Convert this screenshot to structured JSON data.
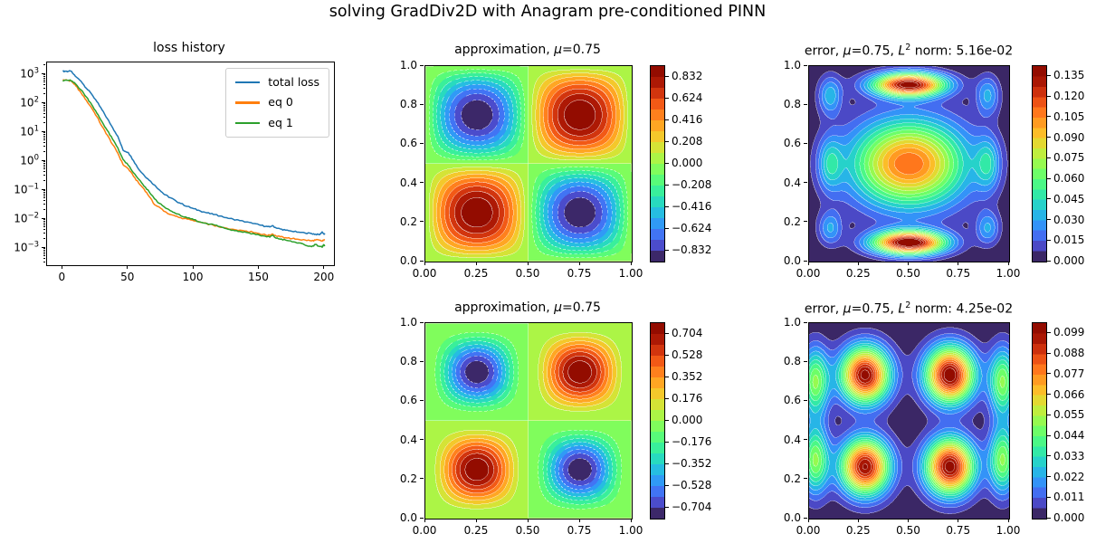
{
  "figure": {
    "suptitle": "solving GradDiv2D with Anagram pre-conditioned PINN",
    "background": "#ffffff",
    "text_color": "#000000",
    "contour_line_color": "#ffffff"
  },
  "chart_data": [
    {
      "id": "loss",
      "type": "line",
      "title": "loss history",
      "title_segments": [
        {
          "t": "loss history"
        }
      ],
      "legend_position": "upper right",
      "grid": false,
      "x_axis": {
        "ticks": [
          "0",
          "50",
          "100",
          "150",
          "200"
        ],
        "lim": [
          -12,
          207
        ]
      },
      "y_axis": {
        "scale": "log",
        "tick_exponents": [
          3,
          2,
          1,
          0,
          -1,
          -2,
          -3
        ],
        "lim_exp": [
          -3.59,
          3.41
        ]
      },
      "noise": 0.022,
      "x": [
        0,
        2,
        4,
        6,
        8,
        10,
        14,
        18,
        22,
        26,
        30,
        34,
        38,
        42,
        46,
        50,
        54,
        58,
        62,
        66,
        70,
        74,
        78,
        82,
        86,
        90,
        95,
        100,
        105,
        110,
        115,
        120,
        125,
        130,
        135,
        140,
        145,
        150,
        155,
        158,
        160,
        163,
        166,
        170,
        175,
        180,
        185,
        190,
        193,
        196,
        198,
        199,
        200
      ],
      "series": [
        {
          "name": "total loss",
          "color": "#1f77b4",
          "logy": [
            3.1,
            3.11,
            3.1,
            3.11,
            3.02,
            2.92,
            2.76,
            2.52,
            2.32,
            2.06,
            1.77,
            1.47,
            1.16,
            0.86,
            0.38,
            0.3,
            0.02,
            -0.28,
            -0.48,
            -0.66,
            -0.82,
            -1.0,
            -1.16,
            -1.26,
            -1.36,
            -1.46,
            -1.56,
            -1.64,
            -1.72,
            -1.78,
            -1.84,
            -1.89,
            -1.95,
            -2.0,
            -2.05,
            -2.1,
            -2.15,
            -2.2,
            -2.25,
            -2.27,
            -2.22,
            -2.31,
            -2.34,
            -2.38,
            -2.42,
            -2.45,
            -2.48,
            -2.5,
            -2.52,
            -2.54,
            -2.44,
            -2.5,
            -2.53
          ]
        },
        {
          "name": "eq 0",
          "color": "#ff7f0e",
          "logy": [
            2.8,
            2.8,
            2.79,
            2.78,
            2.7,
            2.6,
            2.36,
            2.1,
            1.84,
            1.54,
            1.2,
            0.9,
            0.58,
            0.28,
            -0.12,
            -0.26,
            -0.52,
            -0.76,
            -0.96,
            -1.22,
            -1.5,
            -1.6,
            -1.74,
            -1.84,
            -1.9,
            -1.95,
            -2.0,
            -2.06,
            -2.11,
            -2.16,
            -2.21,
            -2.28,
            -2.31,
            -2.35,
            -2.38,
            -2.41,
            -2.45,
            -2.5,
            -2.55,
            -2.56,
            -2.51,
            -2.59,
            -2.61,
            -2.64,
            -2.67,
            -2.7,
            -2.72,
            -2.75,
            -2.72,
            -2.73,
            -2.76,
            -2.73,
            -2.72
          ]
        },
        {
          "name": "eq 1",
          "color": "#2ca02c",
          "logy": [
            2.79,
            2.8,
            2.79,
            2.79,
            2.73,
            2.66,
            2.46,
            2.22,
            1.96,
            1.66,
            1.36,
            1.06,
            0.76,
            0.46,
            0.06,
            -0.14,
            -0.4,
            -0.62,
            -0.86,
            -1.06,
            -1.3,
            -1.46,
            -1.6,
            -1.71,
            -1.8,
            -1.88,
            -1.96,
            -2.02,
            -2.1,
            -2.15,
            -2.19,
            -2.26,
            -2.33,
            -2.38,
            -2.42,
            -2.46,
            -2.5,
            -2.55,
            -2.6,
            -2.62,
            -2.56,
            -2.66,
            -2.69,
            -2.72,
            -2.78,
            -2.82,
            -2.9,
            -2.95,
            -2.87,
            -2.94,
            -2.97,
            -2.88,
            -2.93
          ]
        }
      ]
    },
    {
      "id": "approx_top",
      "type": "heatmap",
      "colormap": "turbo",
      "title": "approximation, μ=0.75",
      "title_segments": [
        {
          "t": "approximation, "
        },
        {
          "t": "μ",
          "italic": true
        },
        {
          "t": "=0.75"
        }
      ],
      "field": {
        "kind": "sine_product",
        "amplitude": 0.936,
        "power": 1
      },
      "vmin": -0.936,
      "vmax": 0.936,
      "levels": 18,
      "x_ticks": [
        "0.00",
        "0.25",
        "0.50",
        "0.75",
        "1.00"
      ],
      "y_ticks": [
        "0.0",
        "0.2",
        "0.4",
        "0.6",
        "0.8",
        "1.0"
      ],
      "colorbar_ticks": [
        "0.832",
        "0.624",
        "0.416",
        "0.208",
        "0.000",
        "−0.208",
        "−0.416",
        "−0.624",
        "−0.832"
      ]
    },
    {
      "id": "error_top",
      "type": "heatmap",
      "colormap": "turbo",
      "title": "error, μ=0.75, L² norm: 5.16e-02",
      "title_segments": [
        {
          "t": "error, "
        },
        {
          "t": "μ",
          "italic": true
        },
        {
          "t": "=0.75, "
        },
        {
          "t": "L",
          "italic": true
        },
        {
          "t": "2",
          "sup": true
        },
        {
          "t": " norm: 5.16e-02"
        }
      ],
      "l2_norm": "5.16e-02",
      "field": {
        "kind": "bumps",
        "bumps": [
          [
            0.5,
            0.905,
            0.14,
            0.125,
            0.042
          ],
          [
            0.5,
            0.095,
            0.147,
            0.125,
            0.042
          ],
          [
            0.5,
            0.5,
            0.112,
            0.2,
            0.155
          ],
          [
            0.105,
            0.85,
            0.034,
            0.042,
            0.07
          ],
          [
            0.895,
            0.85,
            0.031,
            0.042,
            0.07
          ],
          [
            0.105,
            0.5,
            0.034,
            0.042,
            0.095
          ],
          [
            0.895,
            0.5,
            0.034,
            0.042,
            0.095
          ],
          [
            0.105,
            0.17,
            0.03,
            0.042,
            0.06
          ],
          [
            0.895,
            0.17,
            0.03,
            0.042,
            0.06
          ]
        ]
      },
      "vmin": 0,
      "vmax": 0.1425,
      "levels": 19,
      "x_ticks": [
        "0.00",
        "0.25",
        "0.50",
        "0.75",
        "1.00"
      ],
      "y_ticks": [
        "0.0",
        "0.2",
        "0.4",
        "0.6",
        "0.8",
        "1.0"
      ],
      "colorbar_ticks": [
        "0.135",
        "0.120",
        "0.105",
        "0.090",
        "0.075",
        "0.060",
        "0.045",
        "0.030",
        "0.015",
        "0.000"
      ]
    },
    {
      "id": "approx_bottom",
      "type": "heatmap",
      "colormap": "turbo",
      "title": "approximation, μ=0.75",
      "title_segments": [
        {
          "t": "approximation, "
        },
        {
          "t": "μ",
          "italic": true
        },
        {
          "t": "=0.75"
        }
      ],
      "field": {
        "kind": "sine_product",
        "amplitude": 0.792,
        "power": 1.8
      },
      "vmin": -0.792,
      "vmax": 0.792,
      "levels": 18,
      "x_ticks": [
        "0.00",
        "0.25",
        "0.50",
        "0.75",
        "1.00"
      ],
      "y_ticks": [
        "0.0",
        "0.2",
        "0.4",
        "0.6",
        "0.8",
        "1.0"
      ],
      "colorbar_ticks": [
        "0.704",
        "0.528",
        "0.352",
        "0.176",
        "0.000",
        "−0.176",
        "−0.352",
        "−0.528",
        "−0.704"
      ]
    },
    {
      "id": "error_bottom",
      "type": "heatmap",
      "colormap": "turbo",
      "title": "error, μ=0.75, L² norm: 4.25e-02",
      "title_segments": [
        {
          "t": "error, "
        },
        {
          "t": "μ",
          "italic": true
        },
        {
          "t": "=0.75, "
        },
        {
          "t": "L",
          "italic": true
        },
        {
          "t": "2",
          "sup": true
        },
        {
          "t": " norm: 4.25e-02"
        }
      ],
      "l2_norm": "4.25e-02",
      "field": {
        "kind": "bumps",
        "bumps": [
          [
            0.28,
            0.735,
            0.102,
            0.085,
            0.1
          ],
          [
            0.705,
            0.735,
            0.105,
            0.085,
            0.1
          ],
          [
            0.28,
            0.265,
            0.1,
            0.085,
            0.1
          ],
          [
            0.705,
            0.265,
            0.103,
            0.085,
            0.1
          ],
          [
            0.03,
            0.7,
            0.05,
            0.048,
            0.12
          ],
          [
            0.03,
            0.3,
            0.05,
            0.048,
            0.12
          ],
          [
            0.97,
            0.7,
            0.05,
            0.048,
            0.12
          ],
          [
            0.97,
            0.3,
            0.05,
            0.048,
            0.12
          ]
        ]
      },
      "vmin": 0,
      "vmax": 0.1045,
      "levels": 19,
      "x_ticks": [
        "0.00",
        "0.25",
        "0.50",
        "0.75",
        "1.00"
      ],
      "y_ticks": [
        "0.0",
        "0.2",
        "0.4",
        "0.6",
        "0.8",
        "1.0"
      ],
      "colorbar_ticks": [
        "0.099",
        "0.088",
        "0.077",
        "0.066",
        "0.055",
        "0.044",
        "0.033",
        "0.022",
        "0.011",
        "0.000"
      ]
    }
  ]
}
